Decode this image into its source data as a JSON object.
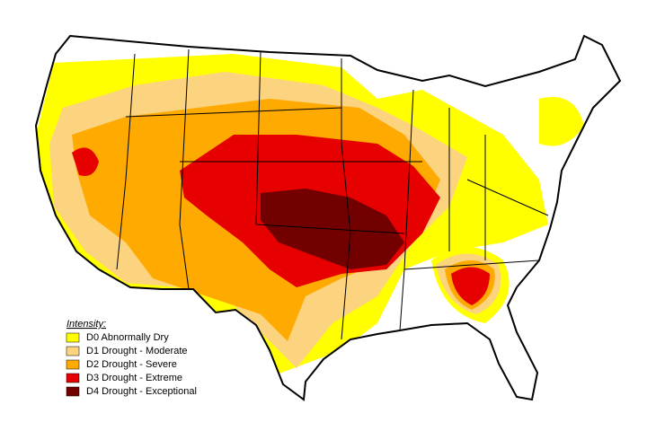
{
  "legend": {
    "title": "Intensity:",
    "items": [
      {
        "label": "D0 Abnormally Dry",
        "color": "#ffff00"
      },
      {
        "label": "D1 Drought - Moderate",
        "color": "#fcd37f"
      },
      {
        "label": "D2 Drought - Severe",
        "color": "#ffaa00"
      },
      {
        "label": "D3 Drought - Extreme",
        "color": "#e60000"
      },
      {
        "label": "D4 Drought - Exceptional",
        "color": "#730000"
      }
    ]
  }
}
